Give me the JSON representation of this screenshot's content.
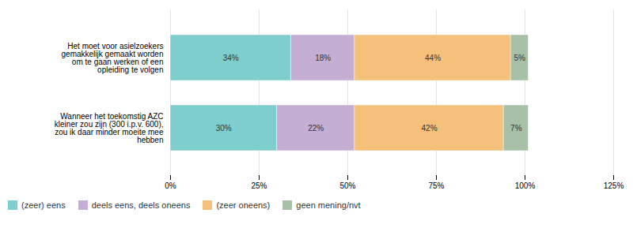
{
  "chart_data": {
    "type": "bar",
    "orientation": "horizontal",
    "stacked": true,
    "data_labels": true,
    "grid": true,
    "legend": "lower left",
    "categories": [
      "Het moet voor asielzoekers\ngemakkelijk gemaakt worden\nom te gaan werken of een\nopleiding te volgen",
      "Wanneer het toekomstig AZC\nkleiner zou zijn (300 i.p.v. 600),\nzou ik daar minder moeite mee\nhebben"
    ],
    "series": [
      {
        "name": "(zeer) eens",
        "color": "#7ecece",
        "values": [
          34,
          30
        ],
        "value_labels": [
          "34%",
          "30%"
        ]
      },
      {
        "name": "deels eens, deels oneens",
        "color": "#c4aed4",
        "values": [
          18,
          22
        ],
        "value_labels": [
          "18%",
          "22%"
        ]
      },
      {
        "name": "(zeer oneens)",
        "color": "#f5c07a",
        "values": [
          44,
          42
        ],
        "value_labels": [
          "44%",
          "42%"
        ]
      },
      {
        "name": "geen mening/nvt",
        "color": "#a8bfa8",
        "values": [
          5,
          7
        ],
        "value_labels": [
          "5%",
          "7%"
        ]
      }
    ],
    "xlim": [
      0,
      125
    ],
    "xticks": [
      {
        "value": 0,
        "label": "0%"
      },
      {
        "value": 25,
        "label": "25%"
      },
      {
        "value": 50,
        "label": "50%"
      },
      {
        "value": 75,
        "label": "75%"
      },
      {
        "value": 100,
        "label": "100%"
      },
      {
        "value": 125,
        "label": "125%"
      }
    ]
  }
}
